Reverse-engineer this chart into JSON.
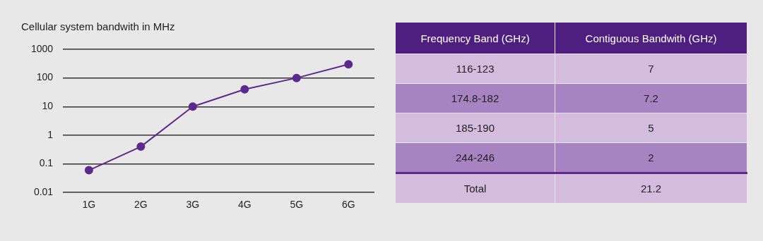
{
  "chart_data": [
    {
      "type": "line",
      "title": "Cellular system bandwith in MHz",
      "categories": [
        "1G",
        "2G",
        "3G",
        "4G",
        "5G",
        "6G"
      ],
      "series": [
        {
          "color": "#5c2a8c",
          "values": [
            0.06,
            0.4,
            10,
            40,
            100,
            300
          ]
        }
      ],
      "log": "y",
      "ylim": [
        0.01,
        1000
      ],
      "yticks": [
        0.01,
        0.1,
        1,
        10,
        100,
        1000
      ],
      "grid": "y",
      "legend": false,
      "marker": "circle",
      "line_style": "solid"
    },
    {
      "type": "other",
      "xlabel": "Frequency Band (GHz)",
      "ylabel": "Contiguous Bandwith (GHz)",
      "categories": [
        "116-123",
        "174.8-182",
        "185-190",
        "244-246"
      ],
      "values": [
        7,
        7.2,
        5,
        2
      ],
      "data_labels": true,
      "annotations": [
        "Total"
      ],
      "totals": [
        "21.2"
      ],
      "colors": [
        "#d4bcdf",
        "#a883c2",
        "#d4bcdf",
        "#a883c2"
      ]
    }
  ]
}
